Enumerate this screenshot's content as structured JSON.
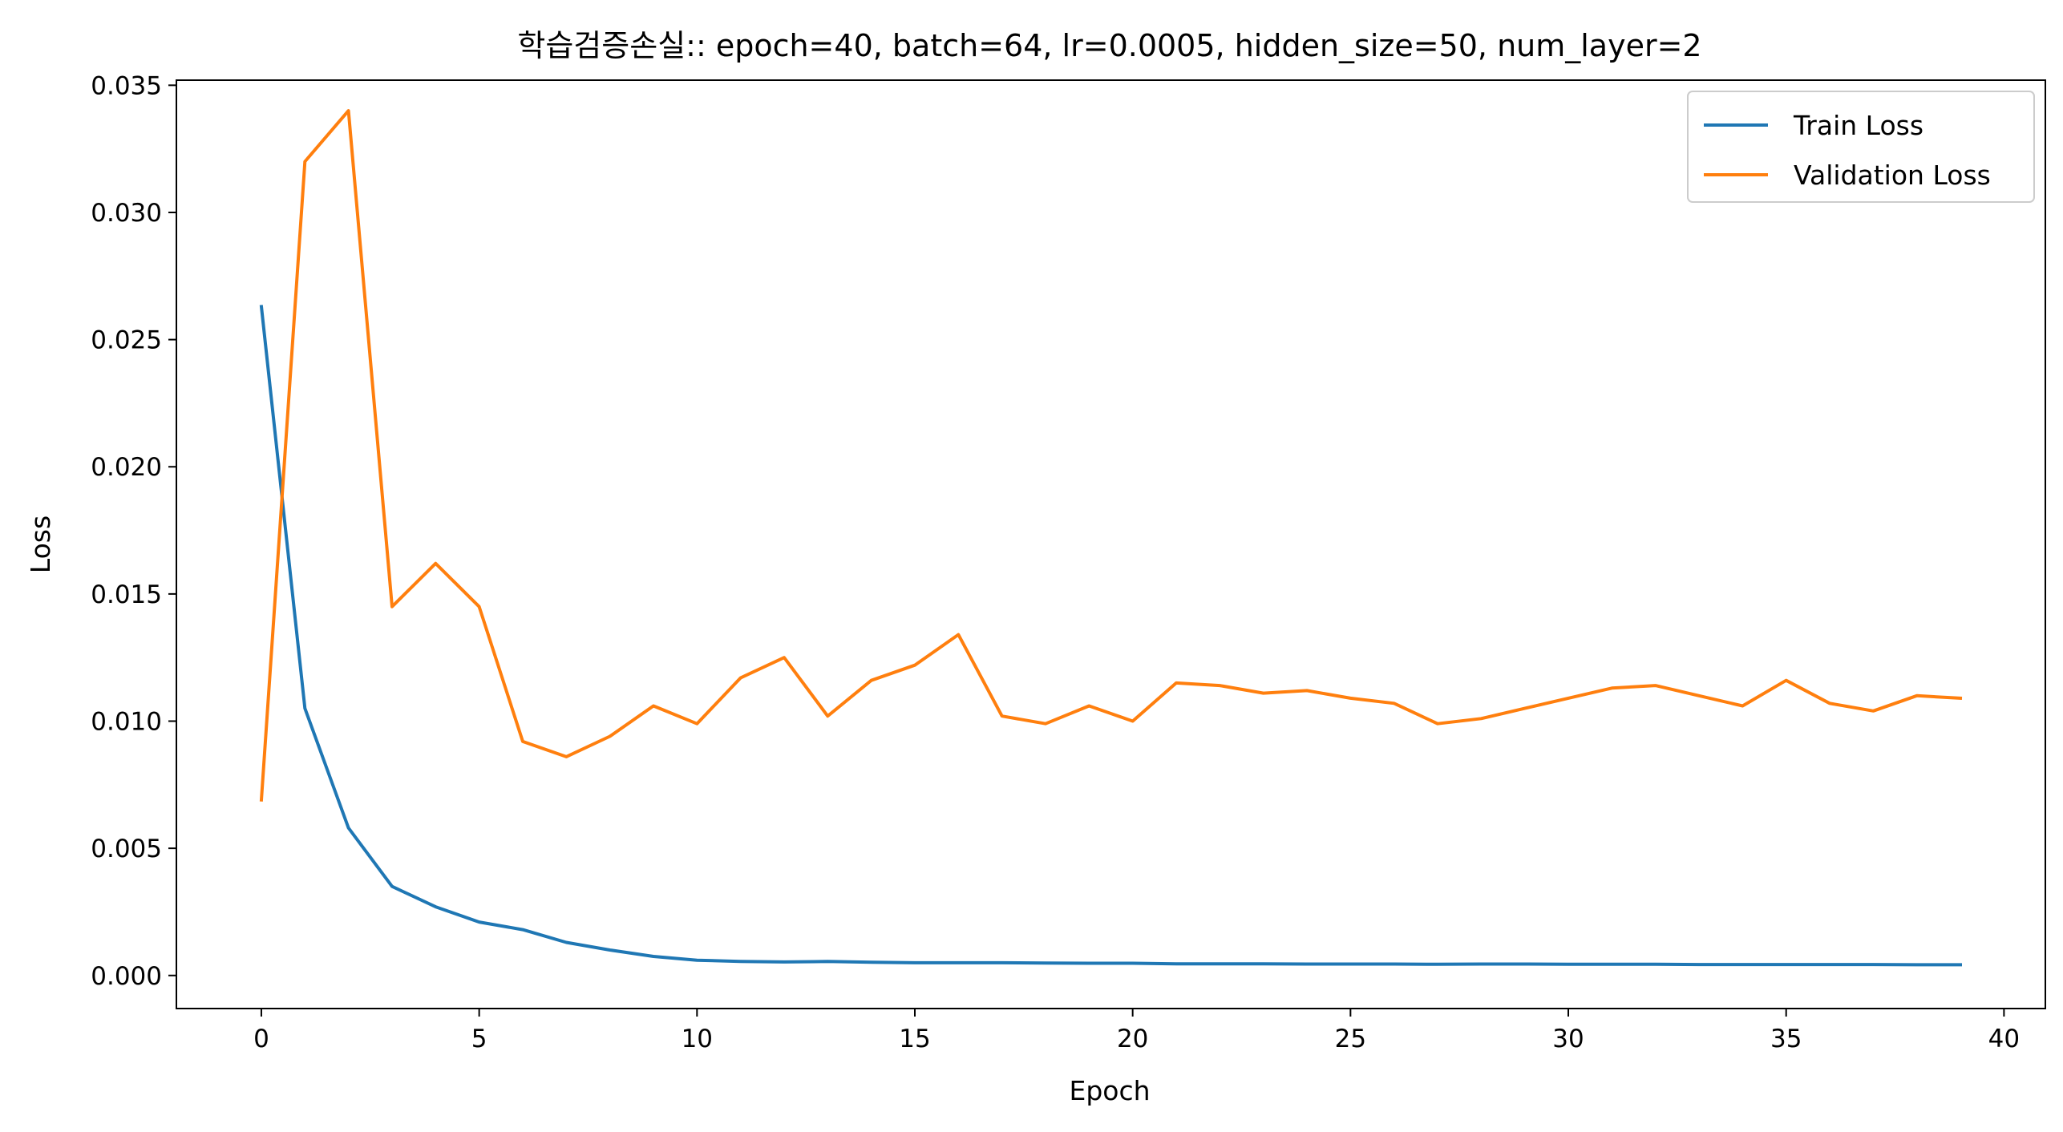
{
  "chart_data": {
    "type": "line",
    "title": "학습검증손실:: epoch=40, batch=64, lr=0.0005, hidden_size=50, num_layer=2",
    "xlabel": "Epoch",
    "ylabel": "Loss",
    "xlim": [
      -1.95,
      40.95
    ],
    "ylim": [
      -0.0013,
      0.0352
    ],
    "xticks": [
      0,
      5,
      10,
      15,
      20,
      25,
      30,
      35,
      40
    ],
    "xtick_labels": [
      "0",
      "5",
      "10",
      "15",
      "20",
      "25",
      "30",
      "35",
      "40"
    ],
    "yticks": [
      0.0,
      0.005,
      0.01,
      0.015,
      0.02,
      0.025,
      0.03,
      0.035
    ],
    "ytick_labels": [
      "0.000",
      "0.005",
      "0.010",
      "0.015",
      "0.020",
      "0.025",
      "0.030",
      "0.035"
    ],
    "grid": false,
    "legend_position": "top-right",
    "x": [
      0,
      1,
      2,
      3,
      4,
      5,
      6,
      7,
      8,
      9,
      10,
      11,
      12,
      13,
      14,
      15,
      16,
      17,
      18,
      19,
      20,
      21,
      22,
      23,
      24,
      25,
      26,
      27,
      28,
      29,
      30,
      31,
      32,
      33,
      34,
      35,
      36,
      37,
      38,
      39
    ],
    "series": [
      {
        "name": "Train Loss",
        "color": "#1f77b4",
        "values": [
          0.0263,
          0.0105,
          0.0058,
          0.0035,
          0.0027,
          0.0021,
          0.0018,
          0.0013,
          0.001,
          0.00075,
          0.0006,
          0.00055,
          0.00053,
          0.00055,
          0.00052,
          0.0005,
          0.0005,
          0.0005,
          0.00049,
          0.00048,
          0.00048,
          0.00046,
          0.00046,
          0.00046,
          0.00045,
          0.00045,
          0.00045,
          0.00044,
          0.00045,
          0.00045,
          0.00044,
          0.00044,
          0.00044,
          0.00043,
          0.00043,
          0.00043,
          0.00043,
          0.00043,
          0.00042,
          0.00042
        ]
      },
      {
        "name": "Validation Loss",
        "color": "#ff7f0e",
        "values": [
          0.0069,
          0.032,
          0.034,
          0.0145,
          0.0162,
          0.0145,
          0.0092,
          0.0086,
          0.0094,
          0.0106,
          0.0099,
          0.0117,
          0.0125,
          0.0102,
          0.0116,
          0.0122,
          0.0134,
          0.0102,
          0.0099,
          0.0106,
          0.01,
          0.0115,
          0.0114,
          0.0111,
          0.0112,
          0.0109,
          0.0107,
          0.0099,
          0.0101,
          0.0105,
          0.0109,
          0.0113,
          0.0114,
          0.011,
          0.0106,
          0.0116,
          0.0107,
          0.0104,
          0.011,
          0.0109
        ]
      }
    ]
  }
}
